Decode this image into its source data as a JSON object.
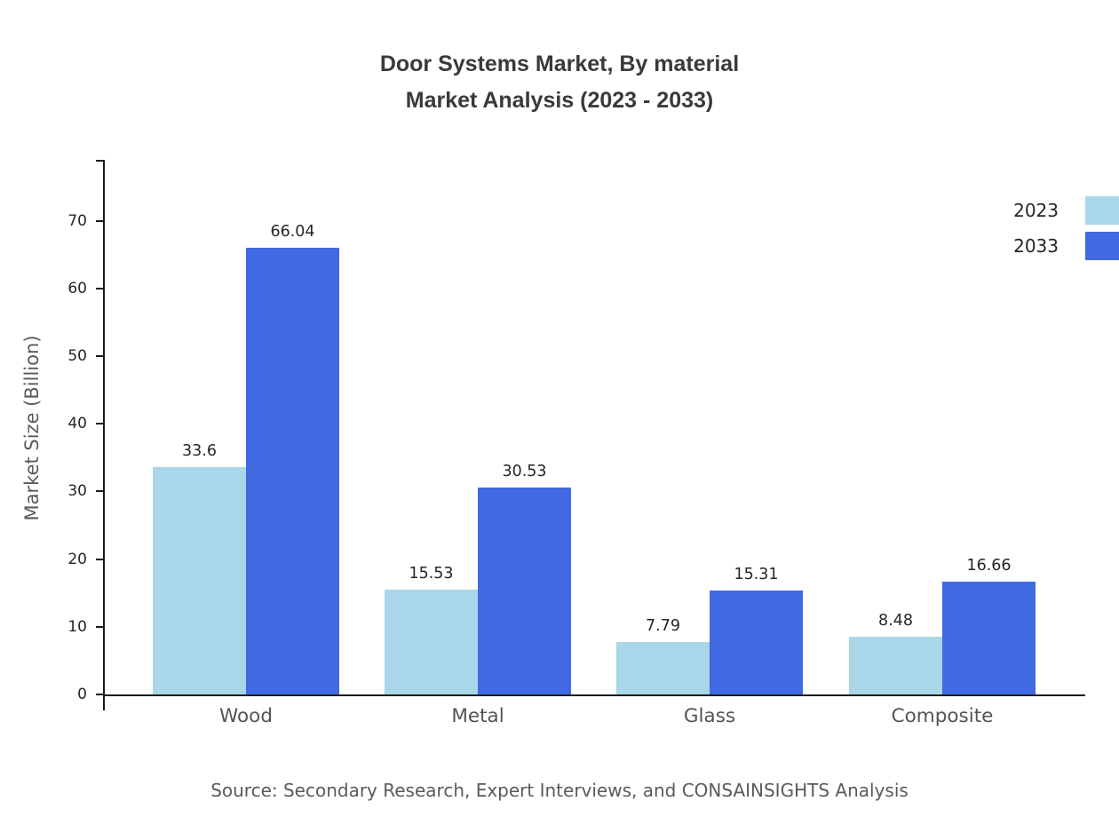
{
  "title": {
    "line1": "Door Systems Market, By material",
    "line2": "Market Analysis (2023 - 2033)"
  },
  "source": "Source: Secondary Research, Expert Interviews, and CONSAINSIGHTS Analysis",
  "chart_data": {
    "type": "bar",
    "title": "Door Systems Market, By material Market Analysis (2023 - 2033)",
    "categories": [
      "Wood",
      "Metal",
      "Glass",
      "Composite"
    ],
    "series": [
      {
        "name": "2023",
        "color": "#a9d6e8",
        "values": [
          33.6,
          15.53,
          7.79,
          8.48
        ]
      },
      {
        "name": "2033",
        "color": "#4169e1",
        "values": [
          66.04,
          30.53,
          15.31,
          16.66
        ]
      }
    ],
    "xlabel": "",
    "ylabel": "Market Size (Billion)",
    "ylim": [
      0,
      79
    ],
    "yticks": [
      0,
      10,
      20,
      30,
      40,
      50,
      60,
      70
    ],
    "grid": false,
    "legend_position": "top-right"
  }
}
